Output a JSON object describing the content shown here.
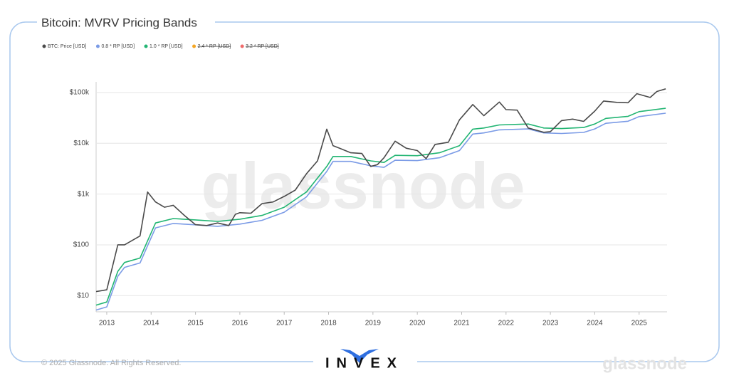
{
  "chart_data": {
    "type": "line",
    "title": "Bitcoin: MVRV Pricing Bands",
    "log_scale": true,
    "grid": true,
    "legend": "top-left",
    "xlim": [
      2012.76,
      2025.63
    ],
    "xticks": [
      2013,
      2014,
      2015,
      2016,
      2017,
      2018,
      2019,
      2020,
      2021,
      2022,
      2023,
      2024,
      2025
    ],
    "ylim": [
      4.8,
      138000
    ],
    "yticks": [
      {
        "value": 10,
        "label": "$10"
      },
      {
        "value": 100,
        "label": "$100"
      },
      {
        "value": 1000,
        "label": "$1k"
      },
      {
        "value": 10000,
        "label": "$10k"
      },
      {
        "value": 100000,
        "label": "$100k"
      }
    ],
    "series": [
      {
        "name": "BTC: Price [USD]",
        "color": "#4a4a4a",
        "x": [
          2012.76,
          2013.0,
          2013.25,
          2013.4,
          2013.75,
          2013.92,
          2014.1,
          2014.3,
          2014.5,
          2014.75,
          2015.0,
          2015.25,
          2015.5,
          2015.75,
          2015.9,
          2016.0,
          2016.25,
          2016.5,
          2016.75,
          2017.0,
          2017.25,
          2017.5,
          2017.75,
          2017.96,
          2018.1,
          2018.25,
          2018.5,
          2018.75,
          2018.95,
          2019.1,
          2019.25,
          2019.5,
          2019.75,
          2020.0,
          2020.2,
          2020.4,
          2020.7,
          2020.95,
          2021.25,
          2021.5,
          2021.85,
          2022.0,
          2022.25,
          2022.5,
          2022.85,
          2023.0,
          2023.25,
          2023.5,
          2023.75,
          2024.0,
          2024.2,
          2024.5,
          2024.75,
          2024.95,
          2025.25,
          2025.4,
          2025.6
        ],
        "values": [
          12,
          13,
          100,
          100,
          150,
          1100,
          700,
          550,
          600,
          380,
          250,
          240,
          270,
          240,
          400,
          430,
          420,
          650,
          700,
          900,
          1200,
          2500,
          4500,
          19000,
          9000,
          8000,
          6500,
          6300,
          3500,
          3800,
          5200,
          11000,
          8000,
          7200,
          5000,
          9500,
          10500,
          29000,
          58000,
          35000,
          65000,
          46000,
          45000,
          20000,
          16500,
          17000,
          28000,
          30000,
          27000,
          43000,
          68000,
          64000,
          63000,
          95000,
          80000,
          105000,
          118000
        ]
      },
      {
        "name": "0.8 * RP [USD]",
        "color": "#7b9be6",
        "x": [
          2012.76,
          2013.0,
          2013.25,
          2013.4,
          2013.75,
          2013.92,
          2014.1,
          2014.5,
          2015.0,
          2015.5,
          2016.0,
          2016.5,
          2017.0,
          2017.5,
          2017.96,
          2018.1,
          2018.5,
          2018.95,
          2019.25,
          2019.5,
          2020.0,
          2020.5,
          2020.95,
          2021.25,
          2021.5,
          2021.85,
          2022.5,
          2022.85,
          2023.25,
          2023.75,
          2024.0,
          2024.25,
          2024.75,
          2025.0,
          2025.6
        ],
        "values": [
          5.2,
          6,
          24,
          36,
          44,
          96,
          216,
          264,
          248,
          232,
          256,
          304,
          440,
          880,
          2800,
          4400,
          4400,
          3600,
          3360,
          4640,
          4560,
          5200,
          7200,
          15200,
          16000,
          18400,
          19200,
          16000,
          15600,
          16400,
          19200,
          24800,
          27200,
          33600,
          39200
        ]
      },
      {
        "name": "1.0 * RP [USD]",
        "color": "#22b573",
        "x": [
          2012.76,
          2013.0,
          2013.25,
          2013.4,
          2013.75,
          2013.92,
          2014.1,
          2014.5,
          2015.0,
          2015.5,
          2016.0,
          2016.5,
          2017.0,
          2017.5,
          2017.96,
          2018.1,
          2018.5,
          2018.95,
          2019.25,
          2019.5,
          2020.0,
          2020.5,
          2020.95,
          2021.25,
          2021.5,
          2021.85,
          2022.5,
          2022.85,
          2023.25,
          2023.75,
          2024.0,
          2024.25,
          2024.75,
          2025.0,
          2025.6
        ],
        "values": [
          6.5,
          7.5,
          30,
          45,
          55,
          120,
          270,
          330,
          310,
          290,
          320,
          380,
          550,
          1100,
          3500,
          5500,
          5500,
          4500,
          4200,
          5800,
          5700,
          6500,
          9000,
          19000,
          20000,
          23000,
          24000,
          20000,
          19500,
          20500,
          24000,
          31000,
          34000,
          42000,
          49000
        ]
      }
    ],
    "hidden_series": [
      {
        "name": "2.4 * RP [USD]",
        "color": "#f5a623"
      },
      {
        "name": "3.2 * RP [USD]",
        "color": "#f06b6b"
      }
    ]
  },
  "watermark": "glassnode",
  "footer": "© 2025 Glassnode. All Rights Reserved.",
  "logo": "INVEX",
  "brand": "glassnode"
}
